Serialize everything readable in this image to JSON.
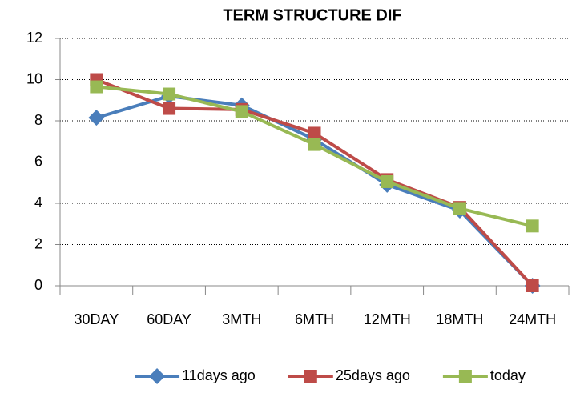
{
  "chart_data": {
    "type": "line",
    "title": "TERM STRUCTURE DIF",
    "categories": [
      "30DAY",
      "60DAY",
      "3MTH",
      "6MTH",
      "12MTH",
      "18MTH",
      "24MTH"
    ],
    "series": [
      {
        "name": "11days ago",
        "color": "#4a7ebb",
        "marker": "diamond",
        "values": [
          8.15,
          9.2,
          8.75,
          7.1,
          4.9,
          3.65,
          0
        ]
      },
      {
        "name": "25days ago",
        "color": "#be4b48",
        "marker": "square",
        "values": [
          10.0,
          8.6,
          8.55,
          7.4,
          5.15,
          3.8,
          0
        ]
      },
      {
        "name": "today",
        "color": "#98b954",
        "marker": "square",
        "values": [
          9.65,
          9.3,
          8.45,
          6.85,
          5.05,
          3.75,
          2.9
        ]
      }
    ],
    "ylim": [
      0,
      12
    ],
    "yticks": [
      0,
      2,
      4,
      6,
      8,
      10,
      12
    ],
    "grid": true,
    "legend": "bottom"
  }
}
